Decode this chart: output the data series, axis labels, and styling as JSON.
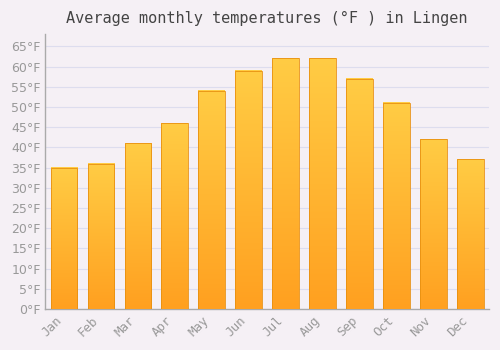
{
  "title": "Average monthly temperatures (°F ) in Lingen",
  "months": [
    "Jan",
    "Feb",
    "Mar",
    "Apr",
    "May",
    "Jun",
    "Jul",
    "Aug",
    "Sep",
    "Oct",
    "Nov",
    "Dec"
  ],
  "values": [
    35,
    36,
    41,
    46,
    54,
    59,
    62,
    62,
    57,
    51,
    42,
    37
  ],
  "bar_color_top": "#FFCC44",
  "bar_color_bottom": "#FFA020",
  "bar_edge_color": "#E89010",
  "background_color": "#F5F0F5",
  "plot_bg_color": "#F5F0F5",
  "grid_color": "#DDDDEE",
  "text_color": "#999999",
  "title_color": "#444444",
  "spine_color": "#AAAAAA",
  "ylim": [
    0,
    68
  ],
  "yticks": [
    0,
    5,
    10,
    15,
    20,
    25,
    30,
    35,
    40,
    45,
    50,
    55,
    60,
    65
  ],
  "title_fontsize": 11,
  "tick_fontsize": 9,
  "figsize": [
    5.0,
    3.5
  ],
  "dpi": 100
}
